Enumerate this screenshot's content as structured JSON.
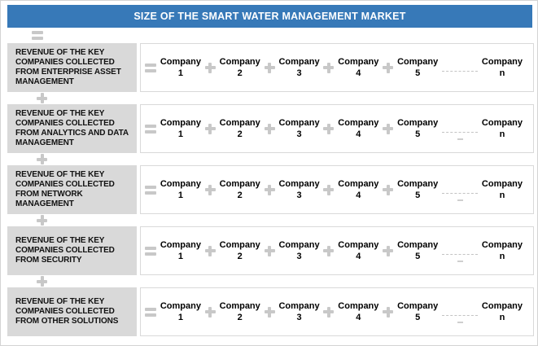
{
  "header": {
    "title": "SIZE OF THE SMART WATER MANAGEMENT MARKET"
  },
  "symbols": {
    "equals": "=",
    "plus": "+",
    "ellipsis": "--------"
  },
  "colors": {
    "header_bg": "#3779b8",
    "header_text": "#ffffff",
    "label_bg": "#d9d9d9",
    "operator_gray": "#c8c8c8",
    "box_border": "#d9d9d9",
    "text_dark": "#111111"
  },
  "rows": [
    {
      "label": "REVENUE OF THE KEY\nCOMPANIES COLLECTED\nFROM ENTERPRISE ASSET\nMANAGEMENT",
      "tail_dash": false,
      "companies": [
        {
          "name": "Company",
          "index": "1"
        },
        {
          "name": "Company",
          "index": "2"
        },
        {
          "name": "Company",
          "index": "3"
        },
        {
          "name": "Company",
          "index": "4"
        },
        {
          "name": "Company",
          "index": "5"
        },
        {
          "name": "Company",
          "index": "n"
        }
      ]
    },
    {
      "label": "REVENUE OF THE KEY\nCOMPANIES COLLECTED\nFROM ANALYTICS AND DATA\nMANAGEMENT",
      "tail_dash": true,
      "companies": [
        {
          "name": "Company",
          "index": "1"
        },
        {
          "name": "Company",
          "index": "2"
        },
        {
          "name": "Company",
          "index": "3"
        },
        {
          "name": "Company",
          "index": "4"
        },
        {
          "name": "Company",
          "index": "5"
        },
        {
          "name": "Company",
          "index": "n"
        }
      ]
    },
    {
      "label": "REVENUE OF THE KEY\nCOMPANIES COLLECTED\nFROM NETWORK\nMANAGEMENT",
      "tail_dash": true,
      "companies": [
        {
          "name": "Company",
          "index": "1"
        },
        {
          "name": "Company",
          "index": "2"
        },
        {
          "name": "Company",
          "index": "3"
        },
        {
          "name": "Company",
          "index": "4"
        },
        {
          "name": "Company",
          "index": "5"
        },
        {
          "name": "Company",
          "index": "n"
        }
      ]
    },
    {
      "label": "REVENUE OF THE KEY\nCOMPANIES COLLECTED\nFROM SECURITY",
      "tail_dash": true,
      "companies": [
        {
          "name": "Company",
          "index": "1"
        },
        {
          "name": "Company",
          "index": "2"
        },
        {
          "name": "Company",
          "index": "3"
        },
        {
          "name": "Company",
          "index": "4"
        },
        {
          "name": "Company",
          "index": "5"
        },
        {
          "name": "Company",
          "index": "n"
        }
      ]
    },
    {
      "label": "REVENUE OF THE KEY\nCOMPANIES COLLECTED\nFROM OTHER SOLUTIONS",
      "tail_dash": true,
      "companies": [
        {
          "name": "Company",
          "index": "1"
        },
        {
          "name": "Company",
          "index": "2"
        },
        {
          "name": "Company",
          "index": "3"
        },
        {
          "name": "Company",
          "index": "4"
        },
        {
          "name": "Company",
          "index": "5"
        },
        {
          "name": "Company",
          "index": "n"
        }
      ]
    }
  ]
}
